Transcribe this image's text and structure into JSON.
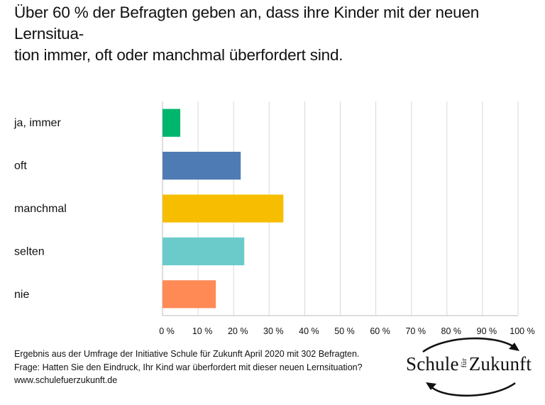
{
  "title": "Über 60 % der Befragten geben an, dass ihre Kinder mit der neuen Lernsitua-tion immer, oft oder manchmal überfordert sind.",
  "title_lines": [
    "Über 60 % der Befragten geben an, dass ihre Kinder mit der neuen Lernsitua-",
    "tion immer, oft oder manchmal überfordert sind."
  ],
  "chart_data": {
    "type": "bar",
    "orientation": "horizontal",
    "categories": [
      "ja, immer",
      "oft",
      "manchmal",
      "selten",
      "nie"
    ],
    "values": [
      5,
      22,
      34,
      23,
      15
    ],
    "colors": [
      "#00B66C",
      "#4F7BB5",
      "#F7BD00",
      "#6BCBCB",
      "#FF8A55"
    ],
    "xlim": [
      0,
      100
    ],
    "x_ticks": [
      "0 %",
      "10 %",
      "20 %",
      "30 %",
      "40 %",
      "50 %",
      "60 %",
      "70 %",
      "80 %",
      "90 %",
      "100 %"
    ],
    "grid": true,
    "legend": "none"
  },
  "footer": {
    "line1": "Ergebnis aus der Umfrage der Initiative Schule für Zukunft  April 2020 mit 302 Befragten.",
    "line2": "Frage: Hatten Sie den Eindruck, Ihr Kind war überfordert mit dieser neuen Lernsituation?",
    "line3": "www.schulefuerzukunft.de"
  },
  "logo": {
    "word1": "Schule",
    "small": "für",
    "word2": "Zukunft"
  }
}
